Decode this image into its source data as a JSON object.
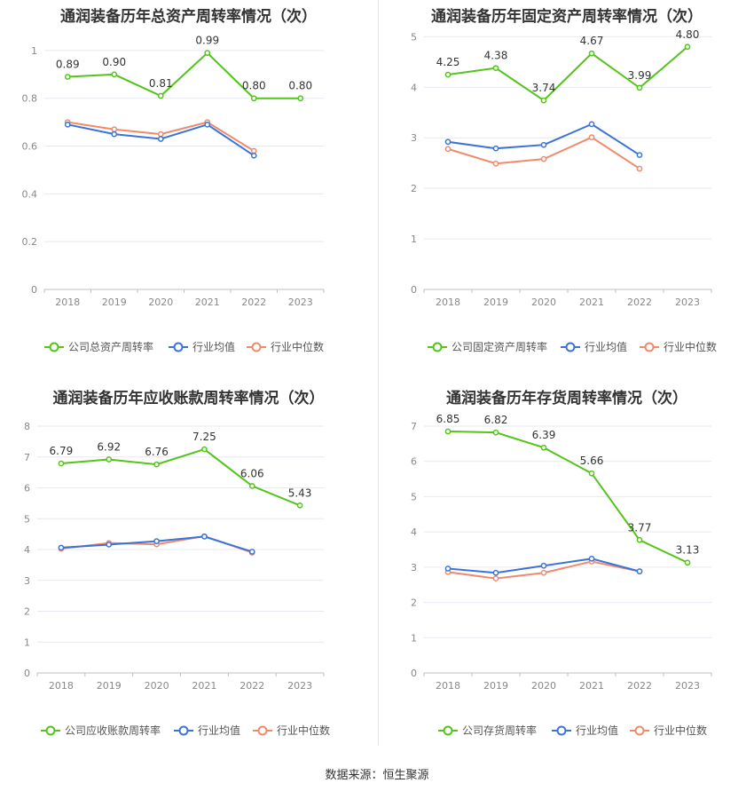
{
  "source": "数据来源：恒生聚源",
  "colors": {
    "company": "#52c41a",
    "avg": "#3b73d9",
    "median": "#f08a6b",
    "grid": "#e6e9f0",
    "axis": "#888888",
    "text": "#333333"
  },
  "chart_data": [
    {
      "type": "line",
      "title": "通润装备历年总资产周转率情况（次）",
      "categories": [
        "2018",
        "2019",
        "2020",
        "2021",
        "2022",
        "2023"
      ],
      "ylim": [
        0,
        1.1
      ],
      "yticks": [
        "0",
        "0.2",
        "0.4",
        "0.6",
        "0.8",
        "1"
      ],
      "ytick_values": [
        0,
        0.2,
        0.4,
        0.6,
        0.8,
        1
      ],
      "series": [
        {
          "name": "公司总资产周转率",
          "key": "company",
          "values": [
            0.89,
            0.9,
            0.81,
            0.99,
            0.8,
            0.8
          ],
          "labels": [
            "0.89",
            "0.90",
            "0.81",
            "0.99",
            "0.80",
            "0.80"
          ]
        },
        {
          "name": "行业均值",
          "key": "avg",
          "values": [
            0.69,
            0.65,
            0.63,
            0.69,
            0.56,
            null
          ]
        },
        {
          "name": "行业中位数",
          "key": "median",
          "values": [
            0.7,
            0.67,
            0.65,
            0.7,
            0.58,
            null
          ]
        }
      ]
    },
    {
      "type": "line",
      "title": "通润装备历年固定资产周转率情况（次）",
      "categories": [
        "2018",
        "2019",
        "2020",
        "2021",
        "2022",
        "2023"
      ],
      "ylim": [
        0,
        5.2
      ],
      "yticks": [
        "0",
        "1",
        "2",
        "3",
        "4",
        "5"
      ],
      "ytick_values": [
        0,
        1,
        2,
        3,
        4,
        5
      ],
      "series": [
        {
          "name": "公司固定资产周转率",
          "key": "company",
          "values": [
            4.25,
            4.38,
            3.74,
            4.67,
            3.99,
            4.8
          ],
          "labels": [
            "4.25",
            "4.38",
            "3.74",
            "4.67",
            "3.99",
            "4.80"
          ]
        },
        {
          "name": "行业均值",
          "key": "avg",
          "values": [
            2.92,
            2.79,
            2.86,
            3.27,
            2.66,
            null
          ]
        },
        {
          "name": "行业中位数",
          "key": "median",
          "values": [
            2.78,
            2.49,
            2.58,
            3.01,
            2.39,
            null
          ]
        }
      ]
    },
    {
      "type": "line",
      "title": "通润装备历年应收账款周转率情况（次）",
      "categories": [
        "2018",
        "2019",
        "2020",
        "2021",
        "2022",
        "2023"
      ],
      "ylim": [
        0,
        8
      ],
      "yticks": [
        "0",
        "1",
        "2",
        "3",
        "4",
        "5",
        "6",
        "7",
        "8"
      ],
      "ytick_values": [
        0,
        1,
        2,
        3,
        4,
        5,
        6,
        7,
        8
      ],
      "series": [
        {
          "name": "公司应收账款周转率",
          "key": "company",
          "values": [
            6.79,
            6.92,
            6.76,
            7.25,
            6.06,
            5.43
          ],
          "labels": [
            "6.79",
            "6.92",
            "6.76",
            "7.25",
            "6.06",
            "5.43"
          ]
        },
        {
          "name": "行业均值",
          "key": "avg",
          "values": [
            4.06,
            4.16,
            4.27,
            4.42,
            3.93,
            null
          ]
        },
        {
          "name": "行业中位数",
          "key": "median",
          "values": [
            4.03,
            4.21,
            4.17,
            4.43,
            3.9,
            null
          ]
        }
      ]
    },
    {
      "type": "line",
      "title": "通润装备历年存货周转率情况（次）",
      "categories": [
        "2018",
        "2019",
        "2020",
        "2021",
        "2022",
        "2023"
      ],
      "ylim": [
        0,
        7
      ],
      "yticks": [
        "0",
        "1",
        "2",
        "3",
        "4",
        "5",
        "6",
        "7"
      ],
      "ytick_values": [
        0,
        1,
        2,
        3,
        4,
        5,
        6,
        7
      ],
      "series": [
        {
          "name": "公司存货周转率",
          "key": "company",
          "values": [
            6.85,
            6.82,
            6.39,
            5.66,
            3.77,
            3.13
          ],
          "labels": [
            "6.85",
            "6.82",
            "6.39",
            "5.66",
            "3.77",
            "3.13"
          ]
        },
        {
          "name": "行业均值",
          "key": "avg",
          "values": [
            2.96,
            2.84,
            3.04,
            3.24,
            2.88,
            null
          ]
        },
        {
          "name": "行业中位数",
          "key": "median",
          "values": [
            2.86,
            2.68,
            2.84,
            3.16,
            2.88,
            null
          ]
        }
      ]
    }
  ]
}
